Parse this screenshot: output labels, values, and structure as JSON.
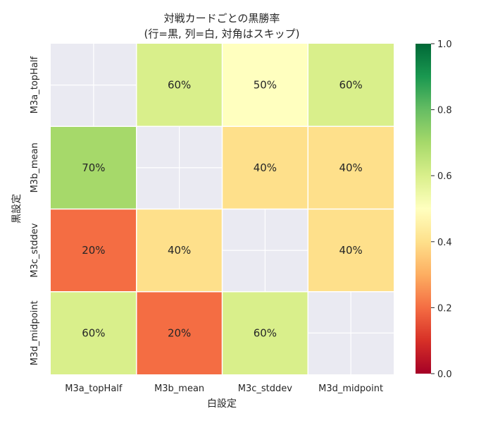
{
  "chart_data": {
    "type": "heatmap",
    "title": "対戦カードごとの黒勝率",
    "subtitle": "(行=黒, 列=白, 対角はスキップ)",
    "xlabel": "白設定",
    "ylabel": "黒設定",
    "x_categories": [
      "M3a_topHalf",
      "M3b_mean",
      "M3c_stddev",
      "M3d_midpoint"
    ],
    "y_categories": [
      "M3a_topHalf",
      "M3b_mean",
      "M3c_stddev",
      "M3d_midpoint"
    ],
    "values": [
      [
        null,
        0.6,
        0.5,
        0.6
      ],
      [
        0.7,
        null,
        0.4,
        0.4
      ],
      [
        0.2,
        0.4,
        null,
        0.4
      ],
      [
        0.6,
        0.2,
        0.6,
        null
      ]
    ],
    "cell_labels": [
      [
        "",
        "60%",
        "50%",
        "60%"
      ],
      [
        "70%",
        "",
        "40%",
        "40%"
      ],
      [
        "20%",
        "40%",
        "",
        "40%"
      ],
      [
        "60%",
        "20%",
        "60%",
        ""
      ]
    ],
    "vmin": 0.0,
    "vmax": 1.0,
    "colormap": "RdYlGn",
    "colorbar_ticks": [
      "0.0",
      "0.2",
      "0.4",
      "0.6",
      "0.8",
      "1.0"
    ],
    "missing_color": "#eaeaf2"
  }
}
